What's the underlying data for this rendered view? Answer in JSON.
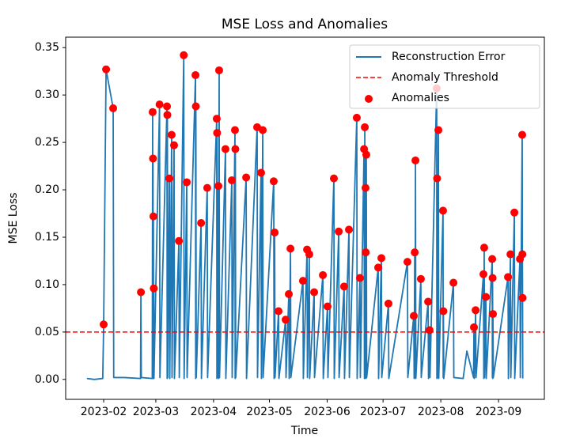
{
  "chart_data": {
    "type": "line",
    "title": "MSE Loss and Anomalies",
    "xlabel": "Time",
    "ylabel": "MSE Loss",
    "xlim": [
      10.6,
      267.6
    ],
    "xticks": [
      {
        "value": 31,
        "label": "2023-02"
      },
      {
        "value": 59,
        "label": "2023-03"
      },
      {
        "value": 90,
        "label": "2023-04"
      },
      {
        "value": 120,
        "label": "2023-05"
      },
      {
        "value": 151,
        "label": "2023-06"
      },
      {
        "value": 181,
        "label": "2023-07"
      },
      {
        "value": 212,
        "label": "2023-08"
      },
      {
        "value": 243,
        "label": "2023-09"
      }
    ],
    "ylim": [
      -0.021,
      0.361
    ],
    "yticks": [
      {
        "value": 0,
        "label": "0.00"
      },
      0.05,
      {
        "value": 0.1,
        "label": "0.10"
      },
      0.15,
      {
        "value": 0.2,
        "label": "0.20"
      },
      0.25,
      {
        "value": 0.3,
        "label": "0.30"
      },
      0.35
    ],
    "legend": "upper right",
    "series": [
      {
        "name": "Reconstruction Error",
        "type": "line",
        "color": "#1f77b4",
        "x": [
          22,
          26,
          30.5,
          31,
          32.3,
          36.1,
          36.4,
          42,
          50.8,
          51,
          51.2,
          57.1,
          57.3,
          57.4,
          57.5,
          57.6,
          57.7,
          57.8,
          57.9,
          58,
          61,
          61.2,
          65,
          65.1,
          65.2,
          65.4,
          66.3,
          66.5,
          67.5,
          67.7,
          68.8,
          69,
          71.4,
          71.6,
          74,
          74.2,
          75.6,
          75.8,
          80.3,
          80.4,
          80.5,
          80.7,
          83.3,
          83.5,
          86.6,
          86.8,
          91.7,
          91.8,
          91.9,
          92.1,
          92.6,
          92.8,
          93,
          93.2,
          96.4,
          96.6,
          99.8,
          100,
          101.5,
          101.6,
          101.7,
          101.9,
          107.5,
          107.7,
          113.4,
          113.6,
          115.5,
          115.7,
          116.4,
          116.6,
          122.3,
          122.5,
          122.8,
          123,
          124.9,
          125.1,
          128.7,
          128.9,
          130.4,
          130.6,
          131.3,
          131.5,
          138,
          138.2,
          140.2,
          140.4,
          141.4,
          141.6,
          144,
          144.2,
          148.7,
          148.9,
          151.2,
          151.4,
          154.6,
          154.8,
          157.2,
          157.4,
          160.1,
          160.3,
          162.7,
          162.9,
          166.9,
          167.1,
          168.6,
          168.8,
          170.8,
          171,
          171.2,
          171.4,
          171.6,
          171.7,
          171.8,
          172,
          172.2,
          178.4,
          178.6,
          180.1,
          180.3,
          183.9,
          184.1,
          194.1,
          194.3,
          197.5,
          197.7,
          198,
          198.2,
          198.4,
          198.6,
          201.3,
          201.5,
          205.2,
          205.4,
          206,
          206.2,
          209.8,
          209.9,
          210,
          210.2,
          210.7,
          210.9,
          213.2,
          213.3,
          213.4,
          213.6,
          218.8,
          219,
          224,
          226,
          229.6,
          229.8,
          230,
          230.7,
          230.9,
          234.9,
          235.1,
          235.3,
          235.5,
          236.2,
          236.4,
          239.6,
          239.7,
          239.8,
          239.9,
          240,
          240.2,
          248.1,
          248.3,
          249.4,
          249.6,
          251.5,
          251.7,
          254.5,
          254.7,
          255.7,
          255.8,
          255.9,
          256
        ],
        "values": [
          0.001,
          0,
          0.001,
          0.058,
          0.327,
          0.286,
          0.002,
          0.002,
          0.001,
          0.092,
          0.002,
          0.001,
          0.282,
          0.002,
          0.233,
          0.001,
          0.172,
          0.002,
          0.096,
          0.001,
          0.29,
          0.002,
          0.288,
          0.001,
          0.279,
          0.002,
          0.212,
          0.001,
          0.258,
          0.002,
          0.247,
          0.001,
          0.146,
          0.002,
          0.342,
          0.001,
          0.208,
          0.002,
          0.321,
          0.001,
          0.288,
          0.002,
          0.165,
          0.001,
          0.202,
          0.002,
          0.275,
          0.001,
          0.26,
          0.002,
          0.204,
          0.001,
          0.326,
          0.002,
          0.243,
          0.001,
          0.21,
          0.002,
          0.263,
          0.001,
          0.243,
          0.002,
          0.213,
          0.001,
          0.266,
          0.002,
          0.218,
          0.001,
          0.263,
          0.002,
          0.209,
          0.001,
          0.155,
          0.002,
          0.072,
          0.001,
          0.063,
          0.002,
          0.09,
          0.001,
          0.138,
          0.002,
          0.104,
          0.001,
          0.137,
          0.002,
          0.132,
          0.001,
          0.092,
          0.002,
          0.11,
          0.001,
          0.077,
          0.002,
          0.212,
          0.001,
          0.156,
          0.002,
          0.098,
          0.001,
          0.158,
          0.002,
          0.276,
          0.001,
          0.107,
          0.002,
          0.243,
          0.001,
          0.266,
          0.002,
          0.202,
          0.134,
          0.001,
          0.237,
          0.002,
          0.118,
          0.001,
          0.128,
          0.002,
          0.08,
          0.001,
          0.124,
          0.002,
          0.067,
          0.001,
          0.134,
          0.002,
          0.231,
          0.001,
          0.106,
          0.002,
          0.082,
          0.001,
          0.052,
          0.002,
          0.307,
          0.001,
          0.212,
          0.002,
          0.263,
          0.001,
          0.178,
          0.002,
          0.072,
          0.001,
          0.102,
          0.002,
          0.001,
          0.03,
          0.002,
          0.055,
          0.001,
          0.073,
          0.002,
          0.111,
          0.001,
          0.139,
          0.002,
          0.087,
          0.001,
          0.127,
          0.002,
          0.107,
          0.001,
          0.069,
          0.002,
          0.108,
          0.001,
          0.132,
          0.002,
          0.176,
          0.001,
          0.127,
          0.002,
          0.258,
          0.132,
          0.086,
          0.001
        ]
      },
      {
        "name": "Anomaly Threshold",
        "type": "hline",
        "color": "#ff0000",
        "values": [
          0.05
        ]
      },
      {
        "name": "Anomalies",
        "type": "scatter",
        "color": "#ff0000",
        "x": [
          31,
          32.3,
          36.1,
          51,
          57.3,
          57.5,
          57.7,
          57.9,
          61,
          65,
          65.2,
          66.3,
          67.5,
          68.8,
          71.4,
          74,
          75.6,
          80.3,
          80.5,
          83.3,
          86.6,
          91.7,
          91.9,
          92.6,
          93,
          96.4,
          99.8,
          101.5,
          101.7,
          107.5,
          113.4,
          115.5,
          116.4,
          122.3,
          122.8,
          124.9,
          128.7,
          130.4,
          131.3,
          138,
          140.2,
          141.4,
          144,
          148.7,
          151.2,
          154.6,
          157.2,
          160.1,
          162.7,
          166.9,
          168.6,
          170.8,
          171.2,
          171.6,
          171.7,
          172,
          178.4,
          180.1,
          183.9,
          194.1,
          197.5,
          198,
          198.4,
          201.3,
          205.2,
          206,
          209.8,
          210,
          210.7,
          213.2,
          213.4,
          218.8,
          229.8,
          230.7,
          234.9,
          235.3,
          236.2,
          239.6,
          239.8,
          240,
          248.1,
          249.4,
          251.5,
          254.5,
          255.7,
          255.8,
          255.9
        ],
        "values": [
          0.058,
          0.327,
          0.286,
          0.092,
          0.282,
          0.233,
          0.172,
          0.096,
          0.29,
          0.288,
          0.279,
          0.212,
          0.258,
          0.247,
          0.146,
          0.342,
          0.208,
          0.321,
          0.288,
          0.165,
          0.202,
          0.275,
          0.26,
          0.204,
          0.326,
          0.243,
          0.21,
          0.263,
          0.243,
          0.213,
          0.266,
          0.218,
          0.263,
          0.209,
          0.155,
          0.072,
          0.063,
          0.09,
          0.138,
          0.104,
          0.137,
          0.132,
          0.092,
          0.11,
          0.077,
          0.212,
          0.156,
          0.098,
          0.158,
          0.276,
          0.107,
          0.243,
          0.266,
          0.202,
          0.134,
          0.237,
          0.118,
          0.128,
          0.08,
          0.124,
          0.067,
          0.134,
          0.231,
          0.106,
          0.082,
          0.052,
          0.307,
          0.212,
          0.263,
          0.178,
          0.072,
          0.102,
          0.055,
          0.073,
          0.111,
          0.139,
          0.087,
          0.127,
          0.107,
          0.069,
          0.108,
          0.132,
          0.176,
          0.127,
          0.258,
          0.132,
          0.086
        ]
      }
    ]
  }
}
